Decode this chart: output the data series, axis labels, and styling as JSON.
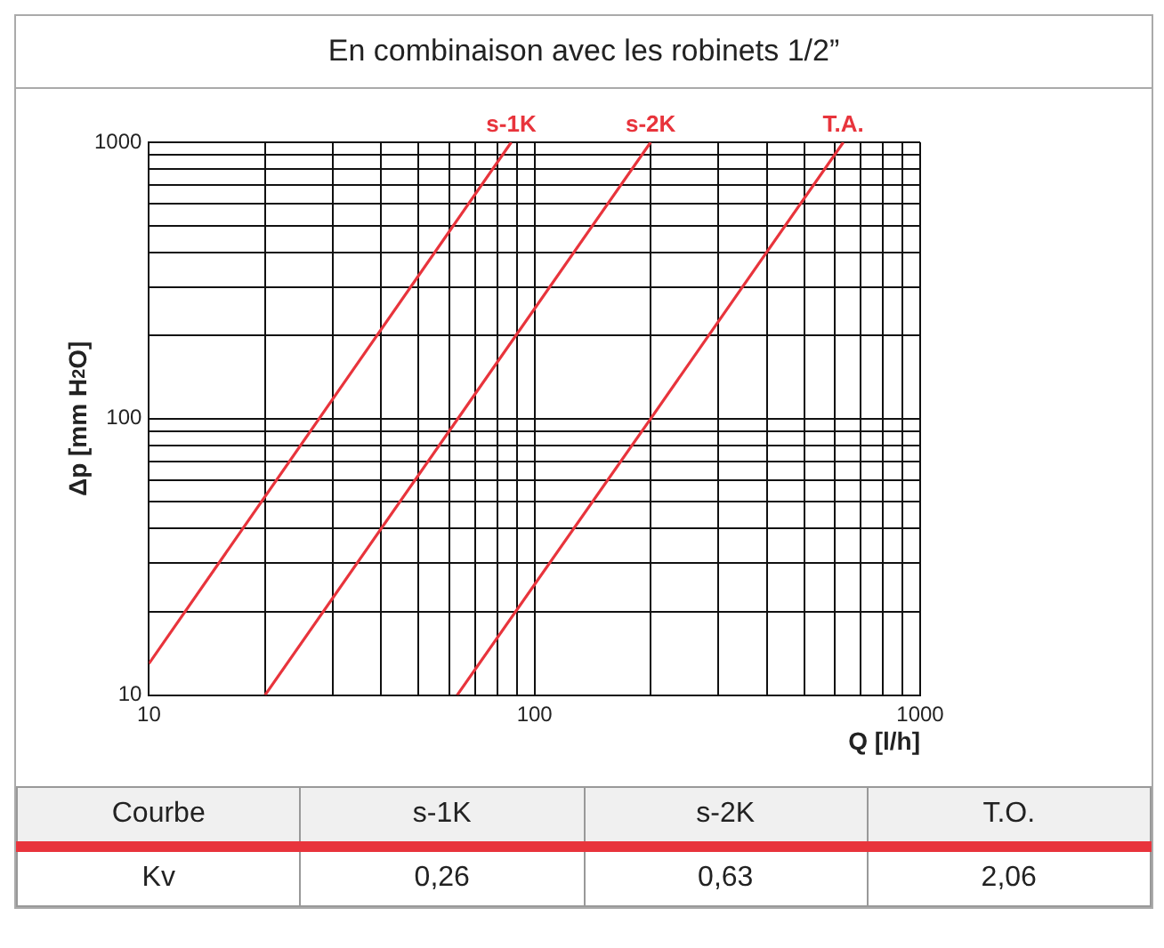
{
  "chart_data": {
    "type": "line",
    "title": "En combinaison avec les robinets 1/2”",
    "xlabel": "Q [l/h]",
    "ylabel": "Δp [mm H$_{2}$O]",
    "series": [
      {
        "name": "s-1K",
        "color": "#e8343c",
        "x": [
          10,
          30,
          87
        ],
        "values": [
          13,
          118,
          1000
        ]
      },
      {
        "name": "s-2K",
        "color": "#e8343c",
        "x": [
          20,
          60,
          200
        ],
        "values": [
          10,
          90,
          1000
        ]
      },
      {
        "name": "T.A.",
        "color": "#e8343c",
        "x": [
          63,
          200,
          632
        ],
        "values": [
          10,
          100,
          1000
        ]
      }
    ],
    "log": "xy",
    "xlim": [
      10,
      1000
    ],
    "ylim": [
      10,
      1000
    ],
    "xticks": [
      10,
      {
        "value": 20,
        "label": null
      },
      {
        "value": 30,
        "label": null
      },
      {
        "value": 40,
        "label": null
      },
      {
        "value": 50,
        "label": null
      },
      {
        "value": 60,
        "label": null
      },
      {
        "value": 70,
        "label": null
      },
      {
        "value": 80,
        "label": null
      },
      {
        "value": 90,
        "label": null
      },
      100,
      {
        "value": 200,
        "label": null
      },
      {
        "value": 300,
        "label": null
      },
      {
        "value": 400,
        "label": null
      },
      {
        "value": 500,
        "label": null
      },
      {
        "value": 600,
        "label": null
      },
      {
        "value": 700,
        "label": null
      },
      {
        "value": 800,
        "label": null
      },
      {
        "value": 900,
        "label": null
      },
      1000
    ],
    "yticks": [
      10,
      {
        "value": 20,
        "label": null
      },
      {
        "value": 30,
        "label": null
      },
      {
        "value": 40,
        "label": null
      },
      {
        "value": 50,
        "label": null
      },
      {
        "value": 60,
        "label": null
      },
      {
        "value": 70,
        "label": null
      },
      {
        "value": 80,
        "label": null
      },
      {
        "value": 90,
        "label": null
      },
      100,
      {
        "value": 200,
        "label": null
      },
      {
        "value": 300,
        "label": null
      },
      {
        "value": 400,
        "label": null
      },
      {
        "value": 500,
        "label": null
      },
      {
        "value": 600,
        "label": null
      },
      {
        "value": 700,
        "label": null
      },
      {
        "value": 800,
        "label": null
      },
      {
        "value": 900,
        "label": null
      },
      1000
    ],
    "grid": true,
    "legend": false,
    "marker": "none",
    "line_style": "solid",
    "annotations": [
      "Courbe",
      "s-1K",
      "s-2K",
      "T.O.",
      "Kv",
      "0,26",
      "0,63",
      "2,06"
    ]
  }
}
